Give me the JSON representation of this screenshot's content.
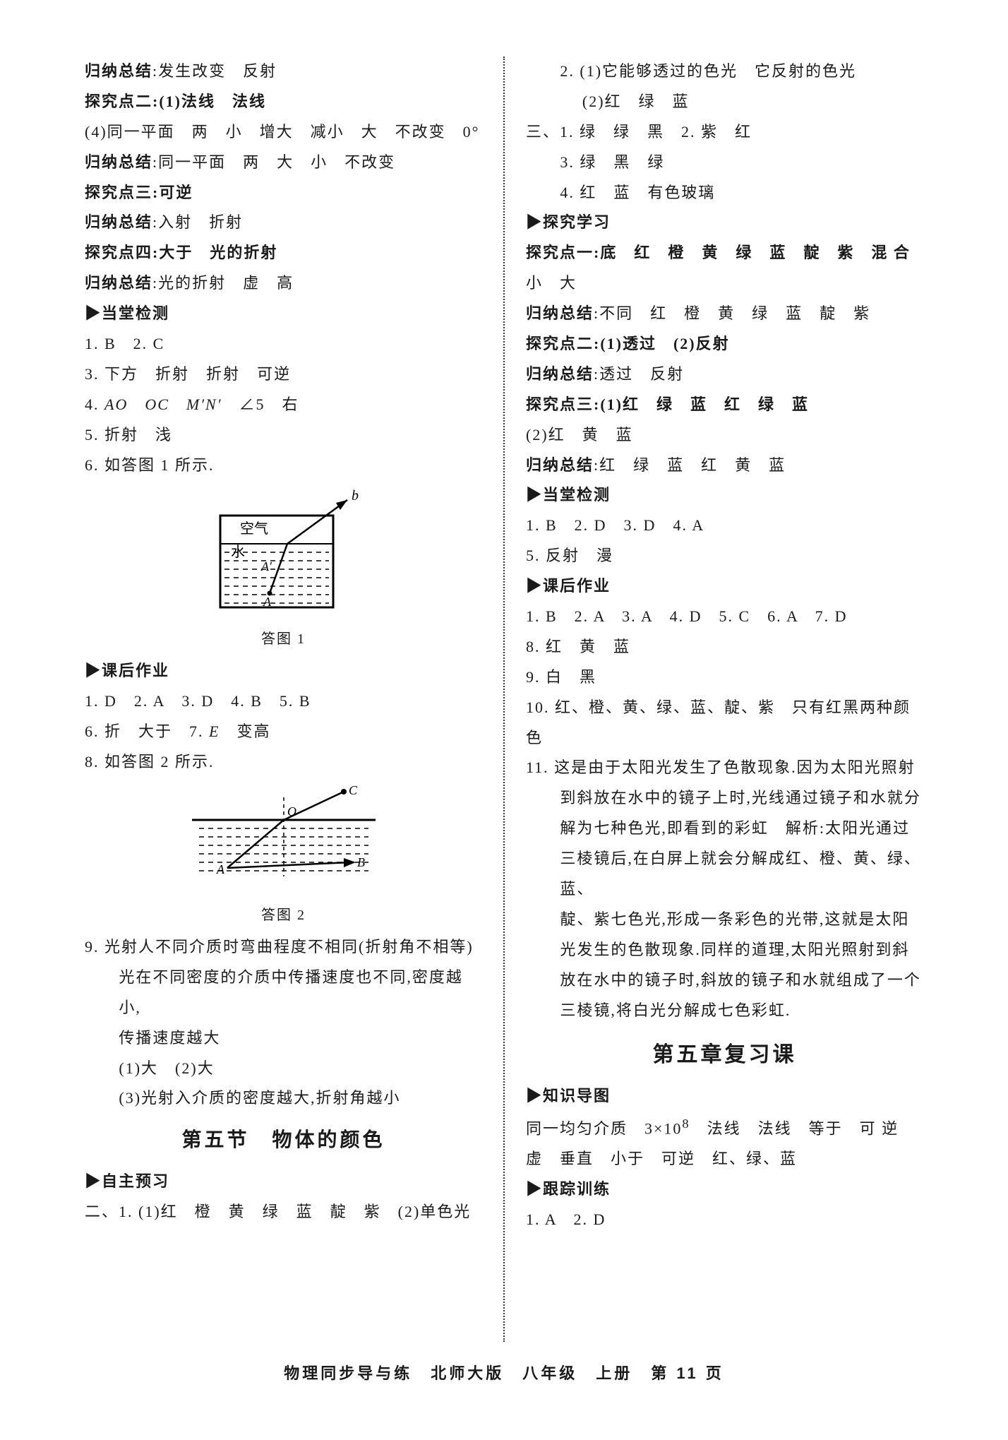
{
  "colors": {
    "text": "#1a1a1a",
    "bg": "#ffffff",
    "divider": "#333333",
    "stroke": "#000000"
  },
  "left": {
    "lines": [
      {
        "cls": "line",
        "text": "归纳总结:发生改变　反射",
        "boldLead": "归纳总结"
      },
      {
        "cls": "line kaiti",
        "text": "探究点二:(1)法线　法线"
      },
      {
        "cls": "line",
        "text": "(4)同一平面　两　小　增大　减小　大　不改变　0°"
      },
      {
        "cls": "line",
        "text": "归纳总结:同一平面　两　大　小　不改变",
        "boldLead": "归纳总结"
      },
      {
        "cls": "line kaiti",
        "text": "探究点三:可逆"
      },
      {
        "cls": "line",
        "text": "归纳总结:入射　折射",
        "boldLead": "归纳总结"
      },
      {
        "cls": "line kaiti",
        "text": "探究点四:大于　光的折射"
      },
      {
        "cls": "line",
        "text": "归纳总结:光的折射　虚　高",
        "boldLead": "归纳总结"
      },
      {
        "cls": "heading",
        "text": "▶当堂检测"
      },
      {
        "cls": "line",
        "text": "1. B　2. C"
      },
      {
        "cls": "line",
        "text": "3. 下方　折射　折射　可逆"
      },
      {
        "cls": "line",
        "html": "4. <span class='italic'>AO</span>　<span class='italic'>OC</span>　<span class='italic'>M′N′</span>　∠5　右"
      },
      {
        "cls": "line",
        "text": "5. 折射　浅"
      },
      {
        "cls": "line",
        "text": "6. 如答图 1 所示."
      }
    ],
    "fig1": {
      "caption": "答图 1",
      "labels": {
        "air": "空气",
        "water": "水",
        "A": "A",
        "A2": "A",
        "b": "b",
        "A1": "A′"
      }
    },
    "afterFig1": [
      {
        "cls": "heading",
        "text": "▶课后作业"
      },
      {
        "cls": "line",
        "text": "1. D　2. A　3. D　4. B　5. B"
      },
      {
        "cls": "line",
        "html": "6. 折　大于　7. <span class='italic'>E</span>　变高"
      },
      {
        "cls": "line",
        "text": "8. 如答图 2 所示."
      }
    ],
    "fig2": {
      "caption": "答图 2",
      "labels": {
        "O": "O",
        "A": "A",
        "B": "B",
        "C": "C"
      }
    },
    "afterFig2": [
      {
        "cls": "line",
        "text": "9. 光射人不同介质时弯曲程度不相同(折射角不相等)"
      },
      {
        "cls": "line indent",
        "text": "光在不同密度的介质中传播速度也不同,密度越小,"
      },
      {
        "cls": "line indent",
        "text": "传播速度越大"
      },
      {
        "cls": "line indent",
        "text": "(1)大　(2)大"
      },
      {
        "cls": "line indent",
        "text": "(3)光射入介质的密度越大,折射角越小"
      }
    ],
    "sectionTitle": "第五节　物体的颜色",
    "tail": [
      {
        "cls": "heading",
        "text": "▶自主预习"
      },
      {
        "cls": "line",
        "text": "二、1. (1)红　橙　黄　绿　蓝　靛　紫　(2)单色光"
      }
    ]
  },
  "right": {
    "lines": [
      {
        "cls": "line indent",
        "text": "2. (1)它能够透过的色光　它反射的色光"
      },
      {
        "cls": "line indent",
        "text": "　 (2)红　绿　蓝"
      },
      {
        "cls": "line",
        "text": "三、1. 绿　绿　黑　2. 紫　红"
      },
      {
        "cls": "line indent",
        "text": "3. 绿　黑　绿"
      },
      {
        "cls": "line indent",
        "text": "4. 红　蓝　有色玻璃"
      },
      {
        "cls": "heading",
        "text": "▶探究学习"
      },
      {
        "cls": "line kaiti",
        "text": "探究点一:底　红　橙　黄　绿　蓝　靛　紫　混 合"
      },
      {
        "cls": "line",
        "text": "小　大"
      },
      {
        "cls": "line",
        "text": "归纳总结:不同　红　橙　黄　绿　蓝　靛　紫",
        "boldLead": "归纳总结"
      },
      {
        "cls": "line kaiti",
        "text": "探究点二:(1)透过　(2)反射"
      },
      {
        "cls": "line",
        "text": "归纳总结:透过　反射",
        "boldLead": "归纳总结"
      },
      {
        "cls": "line kaiti",
        "text": "探究点三:(1)红　绿　蓝　红　绿　蓝"
      },
      {
        "cls": "line",
        "text": "(2)红　黄　蓝"
      },
      {
        "cls": "line",
        "text": "归纳总结:红　绿　蓝　红　黄　蓝",
        "boldLead": "归纳总结"
      },
      {
        "cls": "heading",
        "text": "▶当堂检测"
      },
      {
        "cls": "line",
        "text": "1. B　2. D　3. D　4. A"
      },
      {
        "cls": "line",
        "text": "5. 反射　漫"
      },
      {
        "cls": "heading",
        "text": "▶课后作业"
      },
      {
        "cls": "line",
        "text": "1. B　2. A　3. A　4. D　5. C　6. A　7. D"
      },
      {
        "cls": "line",
        "text": "8. 红　黄　蓝"
      },
      {
        "cls": "line",
        "text": "9. 白　黑"
      },
      {
        "cls": "line",
        "text": "10. 红、橙、黄、绿、蓝、靛、紫　只有红黑两种颜色"
      },
      {
        "cls": "line",
        "text": "11. 这是由于太阳光发生了色散现象.因为太阳光照射"
      },
      {
        "cls": "line indent",
        "text": "到斜放在水中的镜子上时,光线通过镜子和水就分"
      },
      {
        "cls": "line indent",
        "text": "解为七种色光,即看到的彩虹　解析:太阳光通过"
      },
      {
        "cls": "line indent",
        "text": "三棱镜后,在白屏上就会分解成红、橙、黄、绿、蓝、"
      },
      {
        "cls": "line indent",
        "text": "靛、紫七色光,形成一条彩色的光带,这就是太阳"
      },
      {
        "cls": "line indent",
        "text": "光发生的色散现象.同样的道理,太阳光照射到斜"
      },
      {
        "cls": "line indent",
        "text": "放在水中的镜子时,斜放的镜子和水就组成了一个"
      },
      {
        "cls": "line indent",
        "text": "三棱镜,将白光分解成七色彩虹."
      }
    ],
    "chapterTitle": "第五章复习课",
    "tail": [
      {
        "cls": "heading",
        "text": "▶知识导图"
      },
      {
        "cls": "line",
        "html": "同一均匀介质　3×10<sup>8</sup>　法线　法线　等于　可 逆"
      },
      {
        "cls": "line",
        "text": "虚　垂直　小于　可逆　红、绿、蓝"
      },
      {
        "cls": "heading",
        "text": "▶跟踪训练"
      },
      {
        "cls": "line",
        "text": "1. A　2. D"
      }
    ]
  },
  "footer": "物理同步导与练　北师大版　八年级　上册　第 11 页"
}
